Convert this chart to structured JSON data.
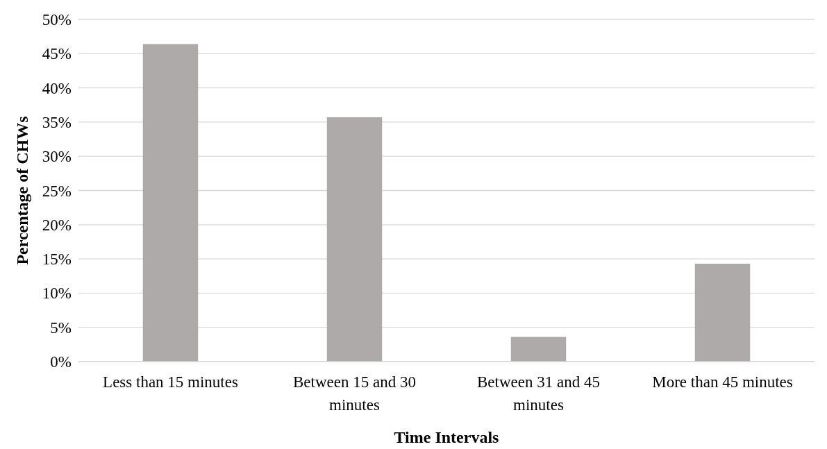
{
  "chart_data": {
    "type": "bar",
    "xlabel": "Time Intervals",
    "ylabel": "Percentage of CHWs",
    "categories": [
      "Less than 15 minutes",
      "Between 15 and 30 minutes",
      "Between 31 and 45 minutes",
      "More than 45 minutes"
    ],
    "values": [
      46.4,
      35.7,
      3.6,
      14.3
    ],
    "color": "#aeaaaa",
    "ylim": [
      0,
      50
    ],
    "yticks": [
      {
        "value": 0,
        "label": "0%"
      },
      {
        "value": 5,
        "label": "5%"
      },
      {
        "value": 10,
        "label": "10%"
      },
      {
        "value": 15,
        "label": "15%"
      },
      {
        "value": 20,
        "label": "20%"
      },
      {
        "value": 25,
        "label": "25%"
      },
      {
        "value": 30,
        "label": "30%"
      },
      {
        "value": 35,
        "label": "35%"
      },
      {
        "value": 40,
        "label": "40%"
      },
      {
        "value": 45,
        "label": "45%"
      },
      {
        "value": 50,
        "label": "50%"
      }
    ],
    "grid": "y"
  }
}
